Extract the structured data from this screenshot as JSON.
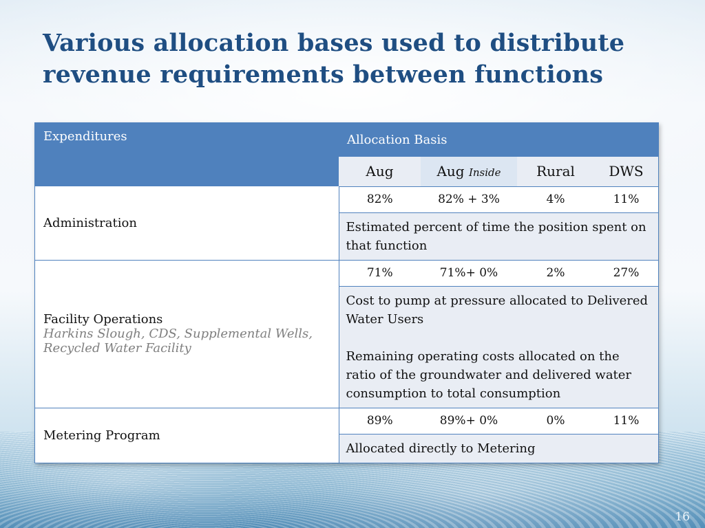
{
  "slide": {
    "title": "Various allocation bases used to distribute revenue requirements between functions",
    "page_number": "16"
  },
  "table": {
    "header": {
      "expenditures": "Expenditures",
      "allocation_basis": "Allocation Basis",
      "columns": {
        "aug": "Aug",
        "aug_inside_main": "Aug",
        "aug_inside_suffix": "Inside",
        "rural": "Rural",
        "dws": "DWS"
      }
    },
    "rows": [
      {
        "name": "Administration",
        "subtitle": "",
        "values": {
          "aug": "82%",
          "aug_inside": "82% + 3%",
          "rural": "4%",
          "dws": "11%"
        },
        "description": "Estimated percent of time the position spent on that function"
      },
      {
        "name": "Facility Operations",
        "subtitle": "Harkins Slough, CDS, Supplemental Wells, Recycled Water Facility",
        "values": {
          "aug": "71%",
          "aug_inside": "71%+ 0%",
          "rural": "2%",
          "dws": "27%"
        },
        "description_1": "Cost to pump at pressure allocated to Delivered Water Users",
        "description_2": "Remaining operating costs allocated on the ratio of the groundwater and delivered water consumption to total consumption"
      },
      {
        "name": "Metering Program",
        "subtitle": "",
        "values": {
          "aug": "89%",
          "aug_inside": "89%+ 0%",
          "rural": "0%",
          "dws": "11%"
        },
        "description": "Allocated directly to Metering"
      }
    ]
  },
  "colors": {
    "title": "#1f4e82",
    "header_bg": "#4f81bd",
    "band_bg": "#e9edf4"
  }
}
